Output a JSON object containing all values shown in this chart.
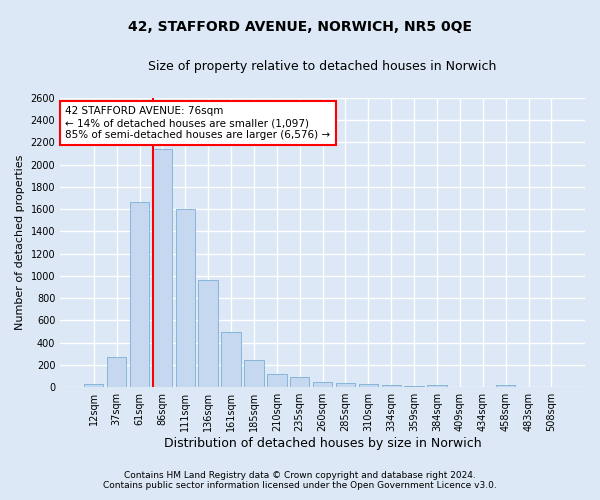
{
  "title": "42, STAFFORD AVENUE, NORWICH, NR5 0QE",
  "subtitle": "Size of property relative to detached houses in Norwich",
  "xlabel": "Distribution of detached houses by size in Norwich",
  "ylabel": "Number of detached properties",
  "categories": [
    "12sqm",
    "37sqm",
    "61sqm",
    "86sqm",
    "111sqm",
    "136sqm",
    "161sqm",
    "185sqm",
    "210sqm",
    "235sqm",
    "260sqm",
    "285sqm",
    "310sqm",
    "334sqm",
    "359sqm",
    "384sqm",
    "409sqm",
    "434sqm",
    "458sqm",
    "483sqm",
    "508sqm"
  ],
  "values": [
    30,
    270,
    1660,
    2140,
    1600,
    960,
    500,
    245,
    120,
    95,
    45,
    40,
    25,
    20,
    10,
    20,
    5,
    5,
    20,
    5,
    5
  ],
  "bar_color": "#c5d8f0",
  "bar_edge_color": "#7aafd4",
  "annotation_text": "42 STAFFORD AVENUE: 76sqm\n← 14% of detached houses are smaller (1,097)\n85% of semi-detached houses are larger (6,576) →",
  "annotation_box_color": "white",
  "annotation_box_edge": "red",
  "red_line_color": "red",
  "ylim": [
    0,
    2600
  ],
  "yticks": [
    0,
    200,
    400,
    600,
    800,
    1000,
    1200,
    1400,
    1600,
    1800,
    2000,
    2200,
    2400,
    2600
  ],
  "footer_line1": "Contains HM Land Registry data © Crown copyright and database right 2024.",
  "footer_line2": "Contains public sector information licensed under the Open Government Licence v3.0.",
  "background_color": "#dce8f5",
  "plot_bg_color": "#dce8f5",
  "grid_color": "white",
  "title_fontsize": 10,
  "subtitle_fontsize": 9,
  "tick_fontsize": 7,
  "ylabel_fontsize": 8,
  "xlabel_fontsize": 9,
  "footer_fontsize": 6.5,
  "red_line_xindex": 2.58
}
